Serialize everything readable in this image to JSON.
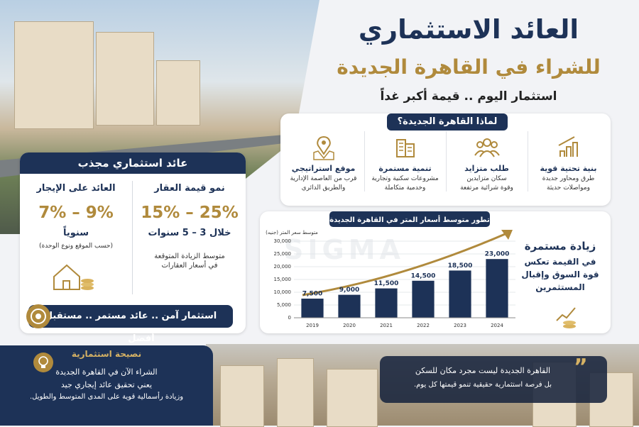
{
  "header": {
    "title": "العائد الاستثماري",
    "subtitle": "للشراء في القاهرة الجديدة",
    "tagline": "استثمار اليوم .. قيمة أكبر غداً"
  },
  "why": {
    "title": "لماذا القاهرة الجديدة؟",
    "items": [
      {
        "title": "بنية تحتية قوية",
        "text": [
          "طرق ومحاور جديدة",
          "ومواصلات حديثة"
        ]
      },
      {
        "title": "طلب متزايد",
        "text": [
          "سكان متزايدين",
          "وقوة شرائية مرتفعة"
        ]
      },
      {
        "title": "تنمية مستمرة",
        "text": [
          "مشروعات سكنية وتجارية",
          "وخدمية متكاملة"
        ]
      },
      {
        "title": "موقع استراتيجي",
        "text": [
          "قرب من العاصمة الإدارية",
          "والطريق الدائري"
        ]
      }
    ]
  },
  "returns": {
    "title": "عائد استثماري مجذب",
    "columns": [
      {
        "title": "نمو قيمة العقار",
        "range": "15% – 25%",
        "period": "خلال 3 – 5 سنوات",
        "note": [
          "متوسط الزيادة المتوقعة",
          "في أسعار العقارات"
        ]
      },
      {
        "title": "العائد على الإيجار",
        "range": "7% – 9%",
        "period": "سنوياً",
        "note": [
          "(حسب الموقع ونوع الوحدة)"
        ]
      }
    ],
    "banner": "استثمار آمن .. عائد مستمر .. مستقبل أفضل"
  },
  "chart_data": {
    "type": "bar",
    "title": "تطور متوسط أسعار المتر في القاهرة الجديدة",
    "y_label": "متوسط سعر المتر (جنيه)",
    "categories": [
      "2019",
      "2020",
      "2021",
      "2022",
      "2023",
      "2024"
    ],
    "values": [
      7500,
      9000,
      11500,
      14500,
      18500,
      23000
    ],
    "value_labels": [
      "7,500",
      "9,000",
      "11,500",
      "14,500",
      "18,500",
      "23,000"
    ],
    "color": "#1d3257",
    "ylim": [
      0,
      30000
    ],
    "yticks": [
      0,
      {
        "value": 5000,
        "label": "5,000"
      },
      {
        "value": 10000,
        "label": "10,000"
      },
      {
        "value": 15000,
        "label": "15,000"
      },
      {
        "value": 20000,
        "label": "20,000"
      },
      {
        "value": 25000,
        "label": "25,000"
      },
      {
        "value": 30000,
        "label": "30,000"
      }
    ],
    "grid": true
  },
  "growth": {
    "title": "زيادة مستمرة",
    "text": [
      "في القيمة تعكس",
      "قوة السوق وإقبال",
      "المستثمرين"
    ]
  },
  "watermark": "SIGMA",
  "advice": {
    "title": "نصيحة استثمارية",
    "text": [
      "الشراء الآن في القاهرة الجديدة",
      "يعني تحقيق عائد إيجاري جيد",
      "وزيادة رأسمالية قوية على المدى المتوسط والطويل."
    ]
  },
  "quote": {
    "text": [
      "القاهرة الجديدة ليست مجرد مكان للسكن",
      "بل فرصة استثمارية حقيقية تنمو قيمتها كل يوم."
    ]
  }
}
